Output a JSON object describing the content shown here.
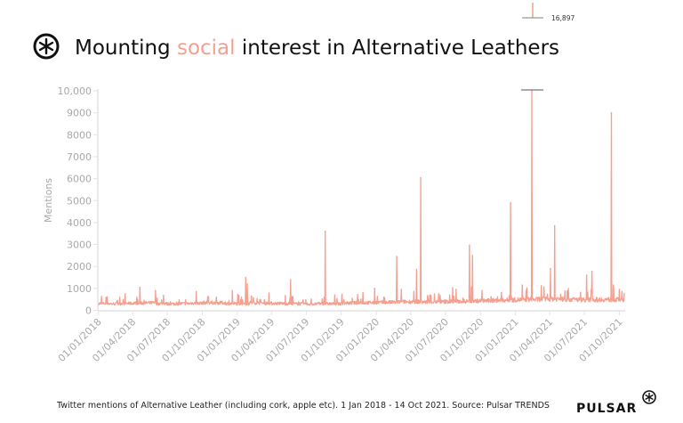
{
  "title": {
    "before": "Mounting ",
    "highlight": "social",
    "after": " interest in Alternative Leathers"
  },
  "footer": {
    "caption": "Twitter mentions of Alternative Leather (including cork, apple etc). 1 Jan 2018 - 14 Oct 2021. Source: Pulsar TRENDS",
    "brand": "PULSAR"
  },
  "colors": {
    "series": "#f4a090",
    "highlight": "#f4a090",
    "axis": "#e4e4e4",
    "tick_text": "#a8a8a8",
    "clip_marker": "#777777"
  },
  "chart_data": {
    "type": "line",
    "ylabel": "Mentions",
    "xlabel": "",
    "ylim": [
      0,
      10000
    ],
    "xlim": [
      "2018-01-01",
      "2021-10-14"
    ],
    "y_ticks": [
      "0",
      "1000",
      "2000",
      "3000",
      "4000",
      "5000",
      "6000",
      "7000",
      "8000",
      "9000",
      "10,000"
    ],
    "x_ticks": [
      "01/01/2018",
      "01/04/2018",
      "01/07/2018",
      "01/10/2018",
      "01/01/2019",
      "01/04/2019",
      "01/07/2019",
      "01/10/2019",
      "01/01/2020",
      "01/04/2020",
      "01/07/2020",
      "01/10/2020",
      "01/01/2021",
      "01/04/2021",
      "01/07/2021",
      "01/10/2021"
    ],
    "x_tick_dates": [
      "2018-01-01",
      "2018-04-01",
      "2018-07-01",
      "2018-10-01",
      "2019-01-01",
      "2019-04-01",
      "2019-07-01",
      "2019-10-01",
      "2020-01-01",
      "2020-04-01",
      "2020-07-01",
      "2020-10-01",
      "2021-01-01",
      "2021-04-01",
      "2021-07-01",
      "2021-10-01"
    ],
    "grid": false,
    "baseline_monthly": [
      300,
      290,
      310,
      320,
      330,
      300,
      290,
      300,
      320,
      340,
      330,
      300,
      290,
      330,
      320,
      310,
      300,
      290,
      280,
      300,
      290,
      320,
      330,
      340,
      350,
      360,
      380,
      390,
      370,
      380,
      390,
      400,
      420,
      430,
      440,
      460,
      470,
      480,
      500,
      510,
      490,
      480,
      470,
      480,
      470,
      480
    ],
    "peaks": [
      {
        "date": "2018-03-12",
        "value": 750
      },
      {
        "date": "2018-04-20",
        "value": 1050
      },
      {
        "date": "2018-05-31",
        "value": 900
      },
      {
        "date": "2018-09-15",
        "value": 850
      },
      {
        "date": "2018-10-17",
        "value": 620
      },
      {
        "date": "2018-12-19",
        "value": 900
      },
      {
        "date": "2019-01-23",
        "value": 1500
      },
      {
        "date": "2019-01-27",
        "value": 1200
      },
      {
        "date": "2019-02-07",
        "value": 650
      },
      {
        "date": "2019-05-21",
        "value": 1400
      },
      {
        "date": "2019-08-20",
        "value": 3600
      },
      {
        "date": "2019-11-27",
        "value": 800
      },
      {
        "date": "2019-12-28",
        "value": 1000
      },
      {
        "date": "2020-02-24",
        "value": 2450
      },
      {
        "date": "2020-03-07",
        "value": 950
      },
      {
        "date": "2020-04-16",
        "value": 1860
      },
      {
        "date": "2020-04-27",
        "value": 6050
      },
      {
        "date": "2020-07-20",
        "value": 1030
      },
      {
        "date": "2020-07-29",
        "value": 950
      },
      {
        "date": "2020-09-02",
        "value": 2970
      },
      {
        "date": "2020-09-10",
        "value": 2500
      },
      {
        "date": "2020-12-19",
        "value": 4900
      },
      {
        "date": "2021-01-19",
        "value": 1150
      },
      {
        "date": "2021-02-13",
        "value": 16897
      },
      {
        "date": "2021-03-10",
        "value": 1120
      },
      {
        "date": "2021-04-03",
        "value": 1900
      },
      {
        "date": "2021-04-14",
        "value": 3850
      },
      {
        "date": "2021-07-07",
        "value": 1600
      },
      {
        "date": "2021-07-21",
        "value": 1780
      },
      {
        "date": "2021-09-10",
        "value": 9000
      },
      {
        "date": "2021-10-01",
        "value": 950
      }
    ],
    "clipped_peak_label": "16,897"
  }
}
